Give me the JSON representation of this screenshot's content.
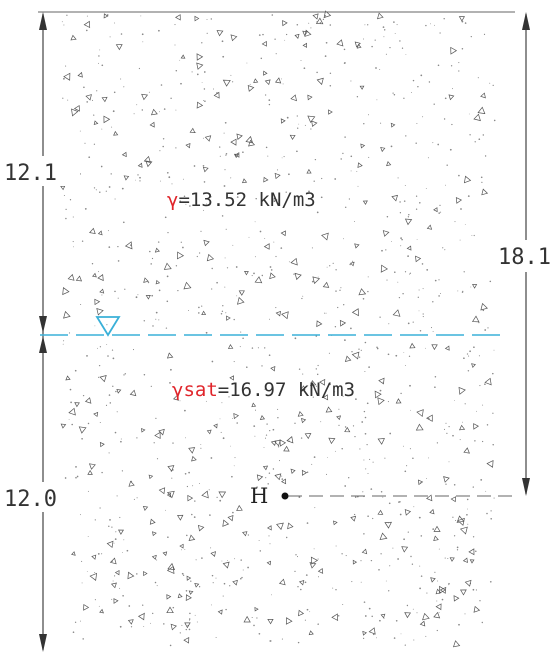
{
  "soil_profile": {
    "layers": [
      {
        "name": "upper-layer",
        "gamma_symbol": "γ",
        "gamma_value_text": "=13.52 kN/m3",
        "thickness_label": "12.1"
      },
      {
        "name": "lower-layer",
        "gamma_symbol": "γsat",
        "gamma_value_text": "=16.97 kN/m3",
        "thickness_label": "12.0"
      }
    ],
    "point": {
      "label": "H",
      "depth_label": "18.1"
    }
  },
  "colors": {
    "water_table": "#3ab0d8",
    "gamma_symbol": "#e0242a",
    "lines": "#555555",
    "texture": "#888888"
  }
}
